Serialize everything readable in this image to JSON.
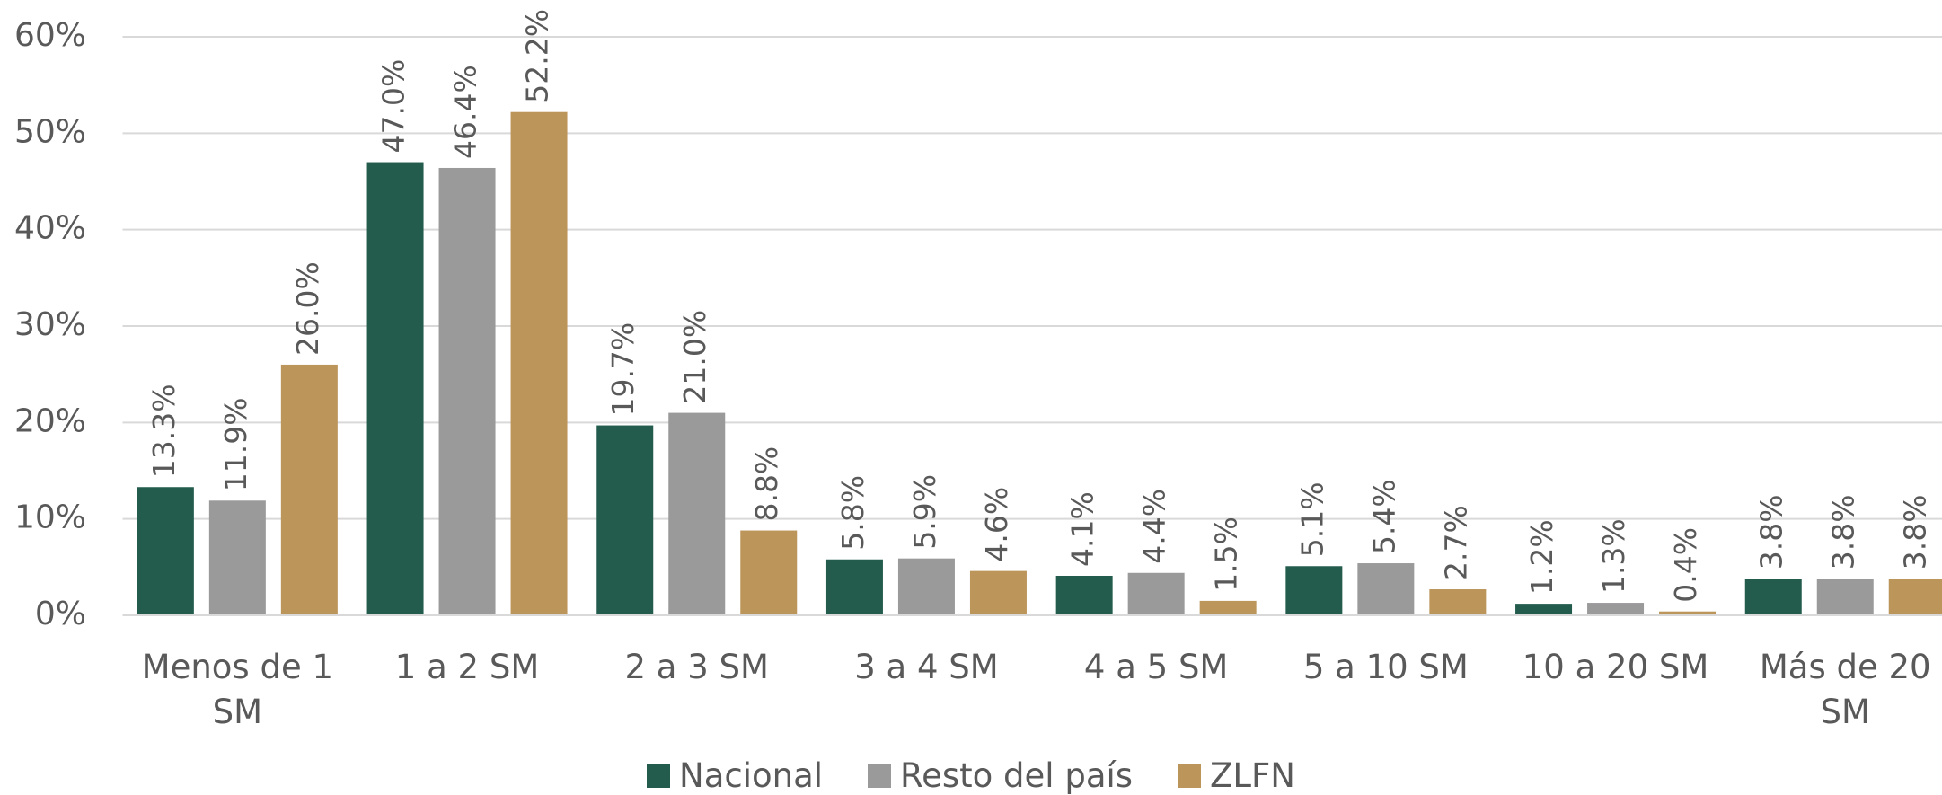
{
  "chart_data": {
    "type": "bar",
    "categories": [
      "Menos de 1 SM",
      "1 a 2 SM",
      "2 a 3 SM",
      "3 a 4 SM",
      "4 a 5 SM",
      "5 a 10 SM",
      "10 a 20 SM",
      "Más de 20 SM"
    ],
    "series": [
      {
        "name": "Nacional",
        "color": "#235c4d",
        "values": [
          13.3,
          47.0,
          19.7,
          5.8,
          4.1,
          5.1,
          1.2,
          3.8
        ],
        "value_labels": [
          "13.3%",
          "47.0%",
          "19.7%",
          "5.8%",
          "4.1%",
          "5.1%",
          "1.2%",
          "3.8%"
        ]
      },
      {
        "name": "Resto del país",
        "color": "#9b9a9b",
        "values": [
          11.9,
          46.4,
          21.0,
          5.9,
          4.4,
          5.4,
          1.3,
          3.8
        ],
        "value_labels": [
          "11.9%",
          "46.4%",
          "21.0%",
          "5.9%",
          "4.4%",
          "5.4%",
          "1.3%",
          "3.8%"
        ]
      },
      {
        "name": "ZLFN",
        "color": "#bb955a",
        "values": [
          26.0,
          52.2,
          8.8,
          4.6,
          1.5,
          2.7,
          0.4,
          3.8
        ],
        "value_labels": [
          "26.0%",
          "52.2%",
          "8.8%",
          "4.6%",
          "1.5%",
          "2.7%",
          "0.4%",
          "3.8%"
        ]
      }
    ],
    "ylim": [
      0,
      60
    ],
    "yticks": [
      {
        "value": 0,
        "label": "0%"
      },
      {
        "value": 10,
        "label": "10%"
      },
      {
        "value": 20,
        "label": "20%"
      },
      {
        "value": 30,
        "label": "30%"
      },
      {
        "value": 40,
        "label": "40%"
      },
      {
        "value": 50,
        "label": "50%"
      },
      {
        "value": 60,
        "label": "60%"
      }
    ],
    "grid": true,
    "legend": "bottom"
  }
}
